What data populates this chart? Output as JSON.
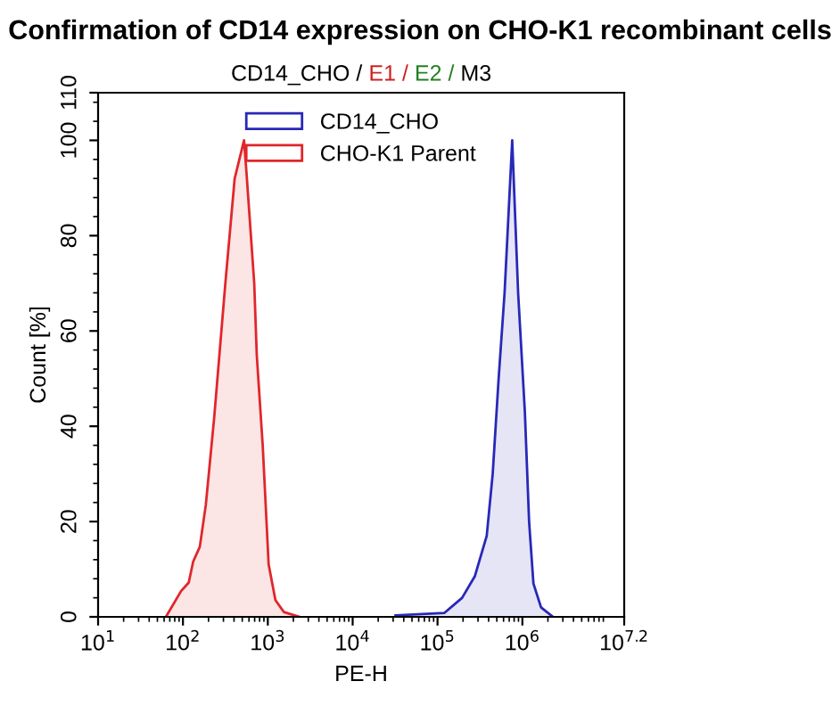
{
  "chart_data": {
    "type": "area",
    "title": "Confirmation of CD14 expression on CHO-K1 recombinant cells",
    "subtitle": "CD14_CHO / E1 / E2 / M3",
    "xlabel": "PE-H",
    "ylabel": "Count [%]",
    "log": "x",
    "xlim": [
      10,
      15848932
    ],
    "ylim": [
      0,
      110
    ],
    "xticks": [
      {
        "value": 10,
        "label": "10$^{1}$"
      },
      {
        "value": 100,
        "label": "10$^{2}$"
      },
      {
        "value": 1000,
        "label": "10$^{3}$"
      },
      {
        "value": 10000,
        "label": "10$^{4}$"
      },
      {
        "value": 100000,
        "label": "10$^{5}$"
      },
      {
        "value": 1000000,
        "label": "10$^{6}$"
      },
      {
        "value": 15848932,
        "label": "10$^{7.2}$"
      }
    ],
    "yticks": [
      0,
      20,
      40,
      60,
      80,
      100,
      110
    ],
    "grid": false,
    "legend": "top",
    "series": [
      {
        "name": "CD14_CHO",
        "color": "#2828b8",
        "x": [
          32000,
          120000,
          195000,
          275000,
          380000,
          447000,
          525000,
          617000,
          759000,
          891000,
          1070000,
          1200000,
          1350000,
          1660000,
          2290000
        ],
        "values": [
          0.3,
          0.8,
          4,
          8.5,
          17,
          30,
          50,
          68,
          100,
          68,
          43,
          20,
          7,
          2,
          0
        ]
      },
      {
        "name": "CHO-K1 Parent",
        "color": "#e0262b",
        "x": [
          63,
          95,
          117,
          132,
          158,
          186,
          234,
          316,
          407,
          525,
          562,
          692,
          741,
          871,
          1023,
          1230,
          1549,
          2344
        ],
        "values": [
          0,
          5.4,
          7.2,
          11.6,
          14.7,
          23.5,
          42,
          70,
          92,
          100,
          93,
          70,
          55,
          36,
          11,
          3.5,
          1,
          0
        ]
      }
    ]
  }
}
